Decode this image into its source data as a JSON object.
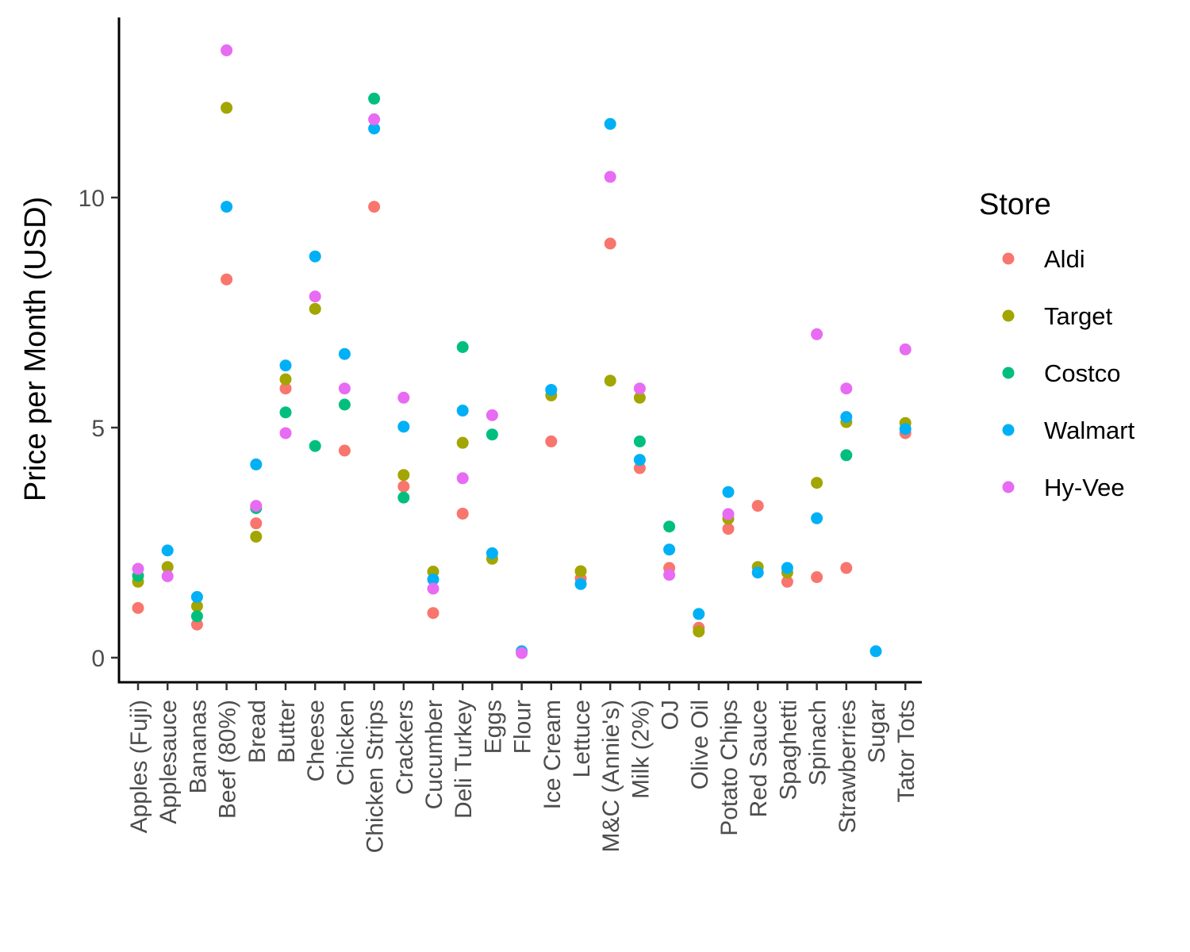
{
  "chart_data": {
    "type": "scatter",
    "title": "",
    "xlabel": "",
    "ylabel": "Price per Month (USD)",
    "ylim": [
      -0.55,
      13.8
    ],
    "y_ticks": [
      0,
      5,
      10
    ],
    "grid": false,
    "legend": {
      "title": "Store",
      "position": "right"
    },
    "categories": [
      "Apples (Fuji)",
      "Applesauce",
      "Bananas",
      "Beef (80%)",
      "Bread",
      "Butter",
      "Cheese",
      "Chicken",
      "Chicken Strips",
      "Crackers",
      "Cucumber",
      "Deli Turkey",
      "Eggs",
      "Flour",
      "Ice Cream",
      "Lettuce",
      "M&C (Annie's)",
      "Milk (2%)",
      "OJ",
      "Olive Oil",
      "Potato Chips",
      "Red Sauce",
      "Spaghetti",
      "Spinach",
      "Strawberries",
      "Sugar",
      "Tator Tots"
    ],
    "series": [
      {
        "name": "Aldi",
        "color": "#F8766D",
        "values": [
          1.08,
          null,
          0.72,
          8.22,
          2.92,
          5.85,
          null,
          4.5,
          9.8,
          3.72,
          0.97,
          3.13,
          null,
          null,
          4.7,
          1.72,
          9.0,
          4.12,
          1.95,
          0.65,
          2.8,
          3.3,
          1.65,
          1.75,
          1.95,
          null,
          4.88
        ]
      },
      {
        "name": "Target",
        "color": "#A3A500",
        "values": [
          1.65,
          1.97,
          1.12,
          11.95,
          2.63,
          6.05,
          7.58,
          null,
          null,
          3.97,
          1.87,
          4.67,
          2.15,
          null,
          5.7,
          1.88,
          6.02,
          5.65,
          null,
          0.57,
          3.02,
          1.97,
          1.85,
          3.8,
          5.12,
          null,
          5.1
        ]
      },
      {
        "name": "Costco",
        "color": "#00BF7D",
        "values": [
          1.78,
          null,
          0.9,
          null,
          3.25,
          5.33,
          4.6,
          5.5,
          12.15,
          3.48,
          null,
          6.75,
          4.85,
          null,
          null,
          null,
          null,
          4.7,
          2.85,
          null,
          null,
          null,
          null,
          null,
          4.4,
          null,
          null
        ]
      },
      {
        "name": "Walmart",
        "color": "#00B0F6",
        "values": [
          null,
          2.33,
          1.32,
          9.8,
          4.2,
          6.35,
          8.72,
          6.6,
          11.5,
          5.02,
          1.7,
          5.37,
          2.27,
          0.14,
          5.82,
          1.6,
          11.6,
          4.3,
          2.35,
          0.95,
          3.6,
          1.85,
          1.95,
          3.03,
          5.23,
          0.14,
          4.97
        ]
      },
      {
        "name": "Hy-Vee",
        "color": "#E76BF3",
        "values": [
          1.93,
          1.77,
          null,
          13.2,
          3.3,
          4.88,
          7.85,
          5.85,
          11.7,
          5.65,
          1.5,
          3.9,
          5.27,
          0.1,
          null,
          null,
          10.45,
          5.85,
          1.8,
          null,
          3.12,
          null,
          null,
          7.03,
          5.85,
          null,
          6.7
        ]
      }
    ]
  }
}
